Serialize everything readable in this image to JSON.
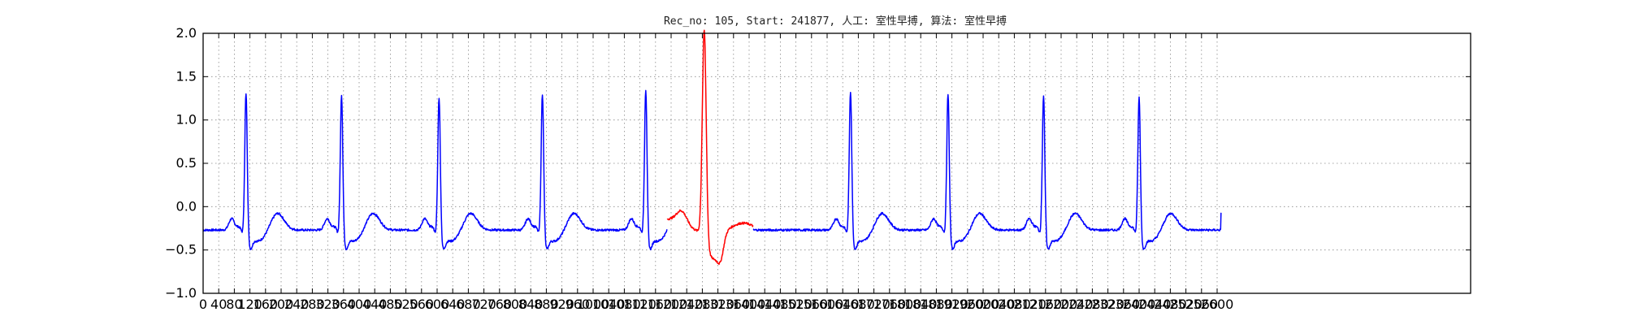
{
  "chart_data": {
    "type": "line",
    "title": "Rec_no: 105, Start: 241877, 人工: 室性早搏, 算法: 室性早搏",
    "xlabel": "",
    "ylabel": "",
    "xlim": [
      0,
      3250
    ],
    "ylim": [
      -1.0,
      2.0
    ],
    "grid": true,
    "legend": "none",
    "x_ticks": [
      0,
      40,
      80,
      120,
      160,
      200,
      240,
      280,
      320,
      360,
      400,
      440,
      480,
      520,
      560,
      600,
      640,
      680,
      720,
      760,
      800,
      840,
      880,
      920,
      960,
      1000,
      1040,
      1080,
      1120,
      1160,
      1200,
      1240,
      1280,
      1320,
      1360,
      1400,
      1440,
      1480,
      1520,
      1560,
      1600,
      1640,
      1680,
      1720,
      1760,
      1800,
      1840,
      1880,
      1920,
      1960,
      2000,
      2040,
      2080,
      2120,
      2160,
      2200,
      2240,
      2280,
      2320,
      2360,
      2400,
      2440,
      2480,
      2520,
      2560,
      2600
    ],
    "x_tick_labels": [
      "0",
      "40",
      "80",
      "120",
      "160",
      "200",
      "240",
      "280",
      "320",
      "360",
      "400",
      "440",
      "480",
      "520",
      "560",
      "600",
      "640",
      "680",
      "720",
      "760",
      "800",
      "840",
      "880",
      "920",
      "960",
      "1000",
      "1040",
      "1080",
      "1120",
      "1160",
      "1200",
      "1240",
      "1280",
      "1320",
      "1360",
      "1400",
      "1440",
      "1480",
      "1520",
      "1560",
      "1600",
      "1640",
      "1680",
      "1720",
      "1760",
      "1800",
      "1840",
      "1880",
      "1920",
      "1960",
      "2000",
      "2040",
      "2080",
      "2120",
      "2160",
      "2200",
      "2240",
      "2280",
      "2320",
      "2360",
      "2400",
      "2440",
      "2480",
      "2520",
      "2560",
      "2600"
    ],
    "y_ticks": [
      -1.0,
      -0.5,
      0.0,
      0.5,
      1.0,
      1.5,
      2.0
    ],
    "y_tick_labels": [
      "−1.0",
      "−0.5",
      "0.0",
      "0.5",
      "1.0",
      "1.5",
      "2.0"
    ],
    "beats_r_peak_x": [
      110,
      355,
      605,
      870,
      1135,
      1660,
      1910,
      2155,
      2400
    ],
    "beats_r_peak_y": [
      1.33,
      1.3,
      1.28,
      1.32,
      1.37,
      1.35,
      1.32,
      1.3,
      1.28
    ],
    "ectopic_beat": {
      "label": "室性早搏",
      "peak_x": 1285,
      "peak_y": 1.88,
      "x_range": [
        1190,
        1410
      ]
    },
    "signal_end_x": 2610,
    "series": [
      {
        "values": [
          -0.32,
          -0.29,
          -0.12,
          -0.35,
          1.33,
          -0.42,
          -0.41,
          -0.06,
          -0.25,
          -0.24,
          -0.08,
          -0.33,
          1.3,
          -0.53,
          -0.5,
          -0.17,
          -0.28,
          -0.32,
          -0.12,
          -0.36,
          1.28,
          -0.5,
          -0.47,
          -0.14,
          -0.28,
          -0.27,
          -0.06,
          -0.36,
          1.32,
          -0.44,
          -0.42,
          -0.1,
          -0.25,
          -0.24,
          -0.04,
          -0.3,
          1.37,
          -0.46,
          -0.43
        ]
      },
      {
        "values": [
          -0.08,
          -0.15,
          1.88,
          -0.55,
          -0.74,
          -0.35,
          -0.17
        ]
      },
      {
        "values": [
          -0.22,
          -0.26,
          -0.24,
          -0.22,
          -0.03,
          -0.32,
          1.35,
          -0.47,
          -0.42,
          -0.18,
          0.02,
          -0.22,
          -0.25,
          -0.05,
          -0.3,
          1.32,
          -0.46,
          -0.43,
          -0.12,
          -0.25,
          -0.25,
          -0.05,
          -0.32,
          1.3,
          -0.5,
          -0.46,
          -0.12,
          -0.25,
          -0.3,
          -0.07,
          -0.3,
          1.28,
          -0.5,
          -0.47,
          -0.17,
          -0.27,
          -0.27,
          -0.07
        ]
      }
    ],
    "colors": {
      "normal": "#0000ff",
      "ectopic": "#ff0000",
      "grid": "#888888",
      "frame": "#000000"
    }
  }
}
